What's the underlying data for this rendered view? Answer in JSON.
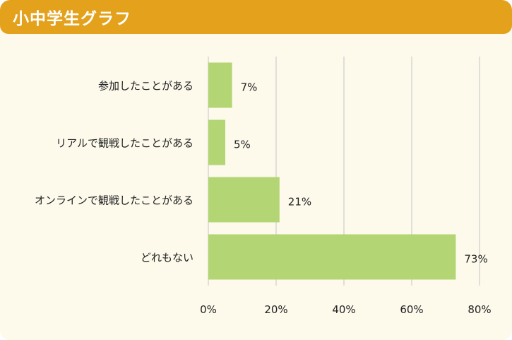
{
  "header": {
    "title": "小中学生グラフ"
  },
  "colors": {
    "header_bg": "#e3a11c",
    "panel_bg": "#fdfaec",
    "bar": "#b3d573",
    "grid": "#d6d6d2"
  },
  "chart_data": {
    "type": "bar",
    "orientation": "horizontal",
    "title": "小中学生グラフ",
    "categories": [
      "参加したことがある",
      "リアルで観戦したことがある",
      "オンラインで観戦したことがある",
      "どれもない"
    ],
    "values": [
      7,
      5,
      21,
      73
    ],
    "value_labels": [
      "7%",
      "5%",
      "21%",
      "73%"
    ],
    "xlim": [
      0,
      80
    ],
    "ticks": [
      0,
      20,
      40,
      60,
      80
    ],
    "tick_labels": [
      "0%",
      "20%",
      "40%",
      "60%",
      "80%"
    ],
    "grid": true
  }
}
